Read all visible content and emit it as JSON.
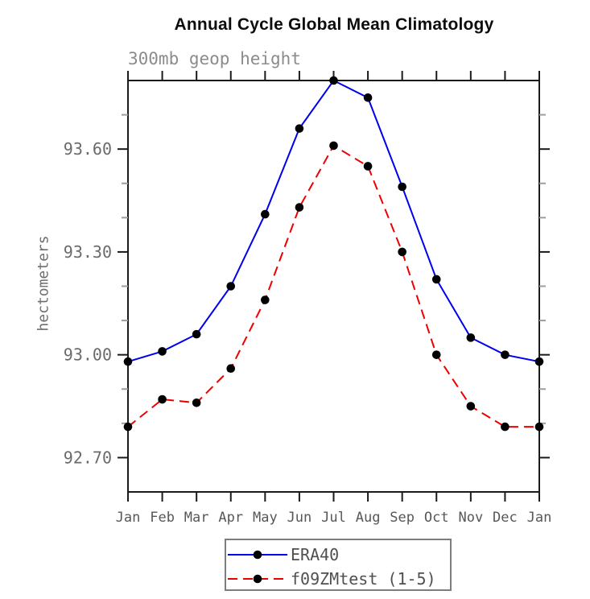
{
  "header": {
    "title": "Annual Cycle Global Mean Climatology",
    "subtitle": "300mb geop height"
  },
  "chart_data": {
    "type": "line",
    "title": "Annual Cycle Global Mean Climatology",
    "subtitle": "300mb geop height",
    "ylabel": "hectometers",
    "xlabel": "",
    "categories": [
      "Jan",
      "Feb",
      "Mar",
      "Apr",
      "May",
      "Jun",
      "Jul",
      "Aug",
      "Sep",
      "Oct",
      "Nov",
      "Dec",
      "Jan"
    ],
    "ylim": [
      92.6,
      93.8
    ],
    "y_major_ticks": [
      92.7,
      93.0,
      93.3,
      93.6
    ],
    "y_major_tick_labels": [
      "92.70",
      "93.00",
      "93.30",
      "93.60"
    ],
    "y_minor_ticks": [
      92.8,
      92.9,
      93.1,
      93.2,
      93.4,
      93.5,
      93.7
    ],
    "grid": false,
    "legend_position": "bottom-center",
    "series": [
      {
        "name": "ERA40",
        "color": "#0000ee",
        "line_style": "solid",
        "marker": "filled-circle",
        "marker_color": "#000000",
        "values": [
          92.98,
          93.01,
          93.06,
          93.2,
          93.41,
          93.66,
          93.8,
          93.75,
          93.49,
          93.22,
          93.05,
          93.0,
          92.98
        ]
      },
      {
        "name": "f09ZMtest (1-5)",
        "color": "#ee0000",
        "line_style": "dashed",
        "marker": "filled-circle",
        "marker_color": "#000000",
        "values": [
          92.79,
          92.87,
          92.86,
          92.96,
          93.16,
          93.43,
          93.61,
          93.55,
          93.3,
          93.0,
          92.85,
          92.79,
          92.79
        ]
      }
    ]
  },
  "colors": {
    "axis": "#1a1a1a",
    "minor_tick": "#9d9d9d",
    "y_tick_label": "#6a6a6a",
    "x_tick_label": "#575757",
    "legend_text": "#4f4f4f",
    "legend_border": "#7d7d7d",
    "title": "#0d0d0d",
    "subtitle": "#8b8b8b"
  }
}
